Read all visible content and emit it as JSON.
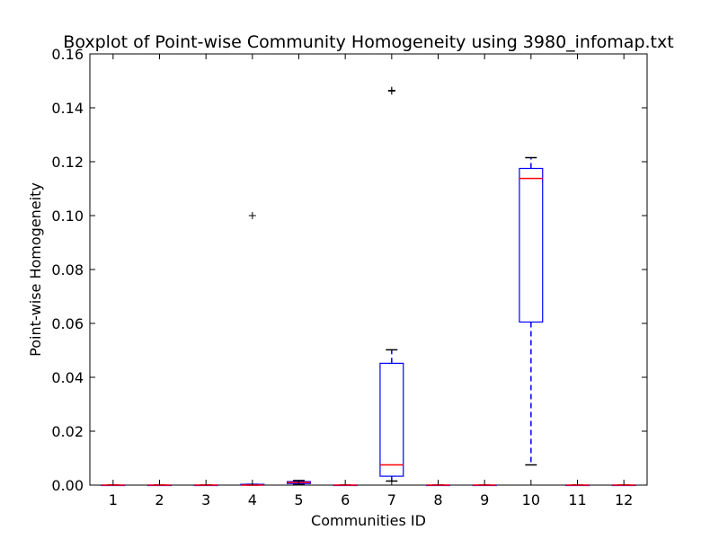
{
  "chart_data": {
    "type": "boxplot",
    "title": "Boxplot of Point-wise Community Homogeneity using 3980_infomap.txt",
    "xlabel": "Communities ID",
    "ylabel": "Point-wise Homogeneity",
    "ylim": [
      0.0,
      0.16
    ],
    "yticks": [
      "0.00",
      "0.02",
      "0.04",
      "0.06",
      "0.08",
      "0.10",
      "0.12",
      "0.14",
      "0.16"
    ],
    "categories": [
      "1",
      "2",
      "3",
      "4",
      "5",
      "6",
      "7",
      "8",
      "9",
      "10",
      "11",
      "12"
    ],
    "grid": false,
    "boxes": [
      {
        "id": "1",
        "whislo": 0.0,
        "q1": 0.0,
        "med": 0.0,
        "q3": 0.0,
        "whishi": 0.0,
        "fliers": []
      },
      {
        "id": "2",
        "whislo": 0.0,
        "q1": 0.0,
        "med": 0.0,
        "q3": 0.0,
        "whishi": 0.0,
        "fliers": []
      },
      {
        "id": "3",
        "whislo": 0.0,
        "q1": 0.0,
        "med": 0.0,
        "q3": 0.0,
        "whishi": 0.0,
        "fliers": []
      },
      {
        "id": "4",
        "whislo": 0.0,
        "q1": 0.0,
        "med": 0.0,
        "q3": 0.0003,
        "whishi": 0.0003,
        "fliers": [
          0.1
        ]
      },
      {
        "id": "5",
        "whislo": 0.0003,
        "q1": 0.0006,
        "med": 0.001,
        "q3": 0.0013,
        "whishi": 0.0017,
        "fliers": []
      },
      {
        "id": "6",
        "whislo": 0.0,
        "q1": 0.0,
        "med": 0.0,
        "q3": 0.0,
        "whishi": 0.0,
        "fliers": []
      },
      {
        "id": "7",
        "whislo": 0.0015,
        "q1": 0.0033,
        "med": 0.0075,
        "q3": 0.0452,
        "whishi": 0.0502,
        "fliers": [
          0.1465,
          0.1462
        ]
      },
      {
        "id": "8",
        "whislo": 0.0,
        "q1": 0.0,
        "med": 0.0,
        "q3": 0.0,
        "whishi": 0.0,
        "fliers": []
      },
      {
        "id": "9",
        "whislo": 0.0,
        "q1": 0.0,
        "med": 0.0,
        "q3": 0.0,
        "whishi": 0.0,
        "fliers": []
      },
      {
        "id": "10",
        "whislo": 0.0075,
        "q1": 0.0605,
        "med": 0.1138,
        "q3": 0.1175,
        "whishi": 0.1215,
        "fliers": []
      },
      {
        "id": "11",
        "whislo": 0.0,
        "q1": 0.0,
        "med": 0.0,
        "q3": 0.0,
        "whishi": 0.0,
        "fliers": []
      },
      {
        "id": "12",
        "whislo": 0.0,
        "q1": 0.0,
        "med": 0.0,
        "q3": 0.0,
        "whishi": 0.0,
        "fliers": []
      }
    ],
    "colors": {
      "box": "#0000ff",
      "median": "#ff0000",
      "whisker": "#0000ff",
      "cap": "#000000",
      "flier": "#000000",
      "frame": "#000000"
    }
  }
}
